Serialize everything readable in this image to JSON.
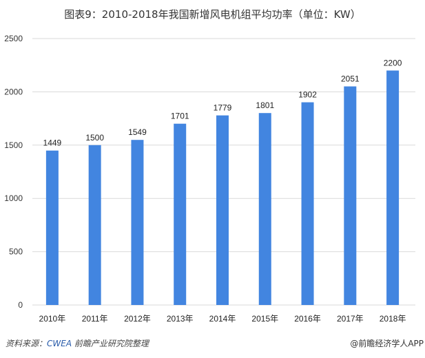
{
  "title": "图表9：2010-2018年我国新增风电机组平均功率（单位：KW）",
  "chart_data": {
    "type": "bar",
    "title": "图表9：2010-2018年我国新增风电机组平均功率（单位：KW）",
    "categories": [
      "2010年",
      "2011年",
      "2012年",
      "2013年",
      "2014年",
      "2015年",
      "2016年",
      "2017年",
      "2018年"
    ],
    "values": [
      1449,
      1500,
      1549,
      1701,
      1779,
      1801,
      1902,
      2051,
      2200
    ],
    "ylim": [
      0,
      2500
    ],
    "yticks": [
      0,
      500,
      1000,
      1500,
      2000,
      2500
    ],
    "grid": true,
    "bar_color": "#4285E0",
    "data_labels": true
  },
  "footer": {
    "source_prefix": "资料来源：",
    "source_name": "CWEA",
    "source_suffix": " 前瞻产业研究院整理",
    "credit": "@前瞻经济学人APP"
  }
}
